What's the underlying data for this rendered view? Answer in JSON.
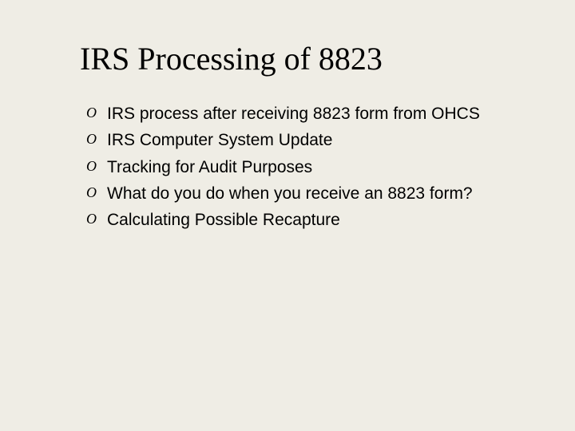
{
  "slide": {
    "title": "IRS Processing of 8823",
    "title_fontsize": 40,
    "title_font": "Times New Roman",
    "title_color": "#000000",
    "background_color": "#efede5",
    "bullet_marker": "O",
    "bullet_marker_style": "italic",
    "bullet_fontsize": 21,
    "bullet_color": "#000000",
    "bullets": [
      "IRS process after receiving 8823 form from OHCS",
      "IRS Computer System Update",
      "Tracking for Audit Purposes",
      "What do you do when you receive an 8823 form?",
      "Calculating Possible Recapture"
    ]
  }
}
